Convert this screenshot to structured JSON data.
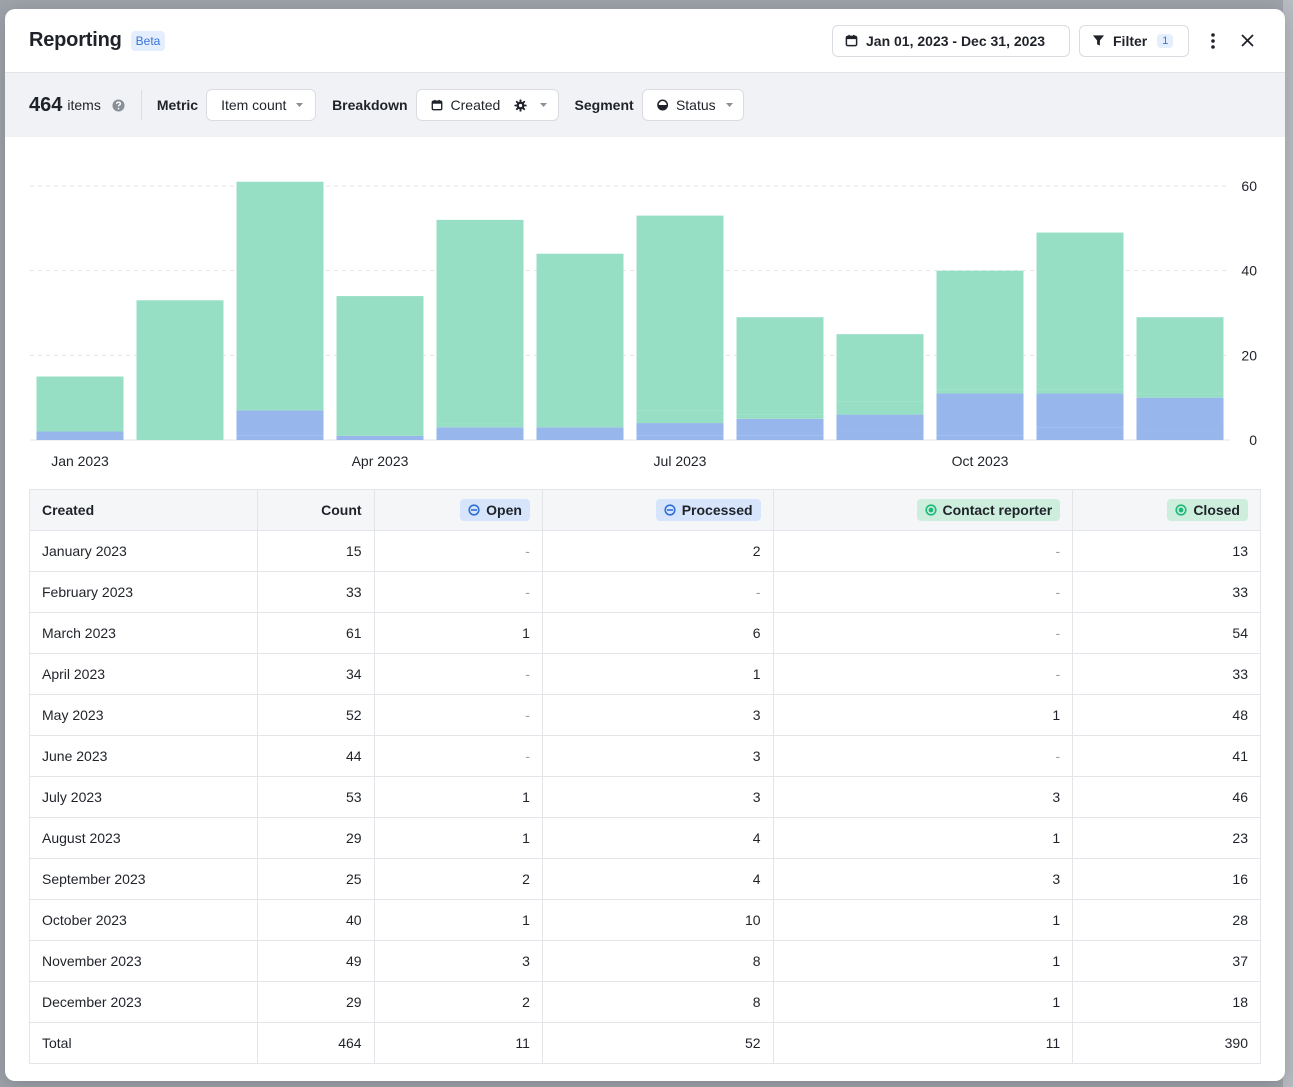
{
  "header": {
    "title": "Reporting",
    "badge": "Beta",
    "date_range": "Jan 01, 2023 - Dec 31, 2023",
    "filter_label": "Filter",
    "filter_count": "1"
  },
  "toolbar": {
    "count": "464",
    "count_unit": "items",
    "metric_label": "Metric",
    "metric_value": "Item count",
    "breakdown_label": "Breakdown",
    "breakdown_value": "Created",
    "segment_label": "Segment",
    "segment_value": "Status"
  },
  "chart_data": {
    "type": "bar",
    "stacked": true,
    "categories": [
      "Jan 2023",
      "Feb 2023",
      "Mar 2023",
      "Apr 2023",
      "May 2023",
      "Jun 2023",
      "Jul 2023",
      "Aug 2023",
      "Sep 2023",
      "Oct 2023",
      "Nov 2023",
      "Dec 2023"
    ],
    "x_tick_labels": [
      "Jan 2023",
      "Apr 2023",
      "Jul 2023",
      "Oct 2023"
    ],
    "y_ticks": [
      0,
      20,
      40,
      60
    ],
    "ylim": [
      0,
      60
    ],
    "grid": true,
    "series": [
      {
        "name": "Open",
        "color": "#97b6eb",
        "values": [
          0,
          0,
          1,
          0,
          0,
          0,
          1,
          1,
          2,
          1,
          3,
          2
        ]
      },
      {
        "name": "Processed",
        "color": "#97b6eb",
        "values": [
          2,
          0,
          6,
          1,
          3,
          3,
          3,
          4,
          4,
          10,
          8,
          8
        ]
      },
      {
        "name": "Contact reporter",
        "color": "#97dfc4",
        "values": [
          0,
          0,
          0,
          0,
          1,
          0,
          3,
          1,
          3,
          1,
          1,
          1
        ]
      },
      {
        "name": "Closed",
        "color": "#97dfc4",
        "values": [
          13,
          33,
          54,
          33,
          48,
          41,
          46,
          23,
          16,
          28,
          37,
          18
        ]
      }
    ]
  },
  "table": {
    "headers": [
      "Created",
      "Count",
      "Open",
      "Processed",
      "Contact reporter",
      "Closed"
    ],
    "rows": [
      [
        "January 2023",
        "15",
        "-",
        "2",
        "-",
        "13"
      ],
      [
        "February 2023",
        "33",
        "-",
        "-",
        "-",
        "33"
      ],
      [
        "March 2023",
        "61",
        "1",
        "6",
        "-",
        "54"
      ],
      [
        "April 2023",
        "34",
        "-",
        "1",
        "-",
        "33"
      ],
      [
        "May 2023",
        "52",
        "-",
        "3",
        "1",
        "48"
      ],
      [
        "June 2023",
        "44",
        "-",
        "3",
        "-",
        "41"
      ],
      [
        "July 2023",
        "53",
        "1",
        "3",
        "3",
        "46"
      ],
      [
        "August 2023",
        "29",
        "1",
        "4",
        "1",
        "23"
      ],
      [
        "September 2023",
        "25",
        "2",
        "4",
        "3",
        "16"
      ],
      [
        "October 2023",
        "40",
        "1",
        "10",
        "1",
        "28"
      ],
      [
        "November 2023",
        "49",
        "3",
        "8",
        "1",
        "37"
      ],
      [
        "December 2023",
        "29",
        "2",
        "8",
        "1",
        "18"
      ],
      [
        "Total",
        "464",
        "11",
        "52",
        "11",
        "390"
      ]
    ]
  },
  "colors": {
    "blue_pill": "#d6e5fb",
    "green_pill": "#cdeedd",
    "blue_icon": "#2f6fd6",
    "green_icon": "#1db97a"
  }
}
